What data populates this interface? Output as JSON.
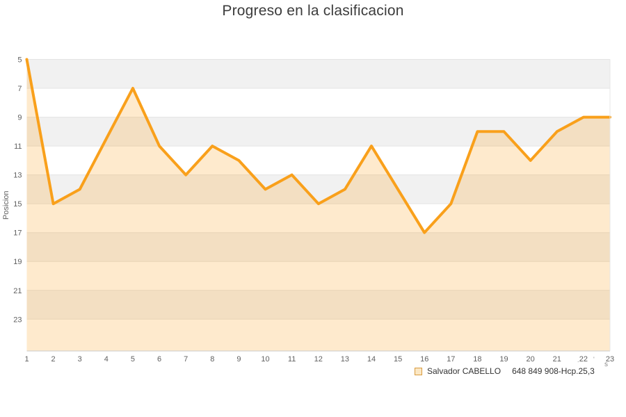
{
  "chart_data": {
    "type": "area",
    "title": "Progreso en la clasificacion",
    "ylabel": "Posicion",
    "xlabel": "",
    "x": [
      1,
      2,
      3,
      4,
      5,
      6,
      7,
      8,
      9,
      10,
      11,
      12,
      13,
      14,
      15,
      16,
      17,
      18,
      19,
      20,
      21,
      22,
      23
    ],
    "series": [
      {
        "name": "Salvador CABELLO",
        "values": [
          5,
          15,
          14,
          10.5,
          7,
          11,
          13,
          11,
          12,
          14,
          13,
          15,
          14,
          11,
          14,
          17,
          15,
          10,
          10,
          12,
          10,
          9,
          9
        ]
      }
    ],
    "yticks": [
      5,
      7,
      9,
      11,
      13,
      15,
      17,
      19,
      21,
      23
    ],
    "y_axis_inverted": true,
    "ylim": [
      5,
      25.2
    ],
    "grid": "horizontal gridlines with alternating gray/white bands",
    "legend": {
      "position": "bottom-right",
      "name": "Salvador CABELLO",
      "detail": "648 849 908-Hcp.25,3"
    },
    "colors": {
      "line": "#F9A01B",
      "fill": "rgba(249,160,27,0.22)",
      "band_gray": "#F1F1F1",
      "band_white": "#FFFFFF",
      "gridline": "#E3E3E3",
      "axis_line": "#C9C9C9",
      "plot_right_border": "#E7E7E7",
      "tick_text": "#606060",
      "title_text": "#3C3C3C",
      "legend_text": "#333333",
      "legend_marker_fill": "#FBE7C4",
      "legend_marker_border": "#D89B3F"
    }
  },
  "footnote_fragments": [
    ".",
    "'",
    "s"
  ]
}
